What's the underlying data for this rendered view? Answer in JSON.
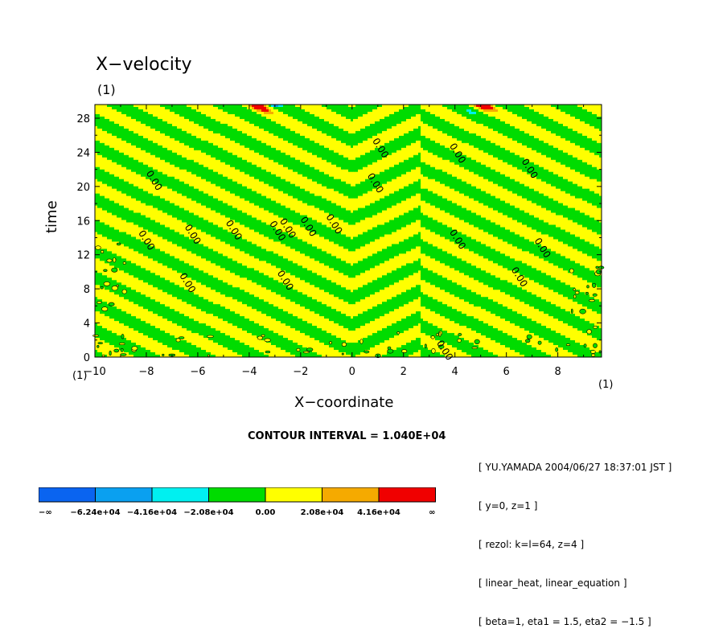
{
  "chart_data": {
    "type": "heatmap",
    "title": "X−velocity",
    "title_unit": "(1)",
    "xlabel": "X−coordinate",
    "ylabel": "time",
    "x_unit": "(1)",
    "x_ticks": [
      "−10",
      "−8",
      "−6",
      "−4",
      "−2",
      "0",
      "2",
      "4",
      "6",
      "8"
    ],
    "x_tick_values": [
      -10,
      -8,
      -6,
      -4,
      -2,
      0,
      2,
      4,
      6,
      8
    ],
    "y_ticks": [
      "0",
      "4",
      "8",
      "12",
      "16",
      "20",
      "24",
      "28"
    ],
    "y_tick_values": [
      0,
      4,
      8,
      12,
      16,
      20,
      24,
      28
    ],
    "xlim": [
      -10,
      9.7
    ],
    "ylim": [
      0,
      29.6
    ],
    "contour_interval": "CONTOUR INTERVAL = 1.040E+04",
    "contour_labels": [
      {
        "x": -7.8,
        "t": 20.5,
        "text": "0.00"
      },
      {
        "x": -8.1,
        "t": 13.5,
        "text": "0.00"
      },
      {
        "x": -6.3,
        "t": 14.2,
        "text": "0.00"
      },
      {
        "x": -6.5,
        "t": 8.5,
        "text": "0.00"
      },
      {
        "x": -4.7,
        "t": 14.7,
        "text": "0.00"
      },
      {
        "x": -3.0,
        "t": 14.6,
        "text": "0.00"
      },
      {
        "x": -2.6,
        "t": 14.9,
        "text": "0.00"
      },
      {
        "x": -1.8,
        "t": 15.1,
        "text": "0.00"
      },
      {
        "x": -0.8,
        "t": 15.4,
        "text": "0.00"
      },
      {
        "x": -2.7,
        "t": 8.8,
        "text": "0.00"
      },
      {
        "x": 1.0,
        "t": 24.3,
        "text": "0.00"
      },
      {
        "x": 0.8,
        "t": 20.2,
        "text": "0.00"
      },
      {
        "x": 3.5,
        "t": 0.6,
        "text": "0.00"
      },
      {
        "x": 4.0,
        "t": 13.6,
        "text": "0.00"
      },
      {
        "x": 4.0,
        "t": 23.7,
        "text": "0.00"
      },
      {
        "x": 6.8,
        "t": 21.9,
        "text": "0.00"
      },
      {
        "x": 6.4,
        "t": 9.2,
        "text": "0.00"
      },
      {
        "x": 7.3,
        "t": 12.6,
        "text": "0.00"
      }
    ],
    "colorbar": {
      "colors": [
        "#0a64f0",
        "#0aa0f0",
        "#00f0f0",
        "#00dc00",
        "#ffff00",
        "#f5aa00",
        "#f00000"
      ],
      "labels": [
        "−∞",
        "−6.24e+04",
        "−4.16e+04",
        "−2.08e+04",
        "0.00",
        "2.08e+04",
        "4.16e+04",
        "∞"
      ]
    }
  },
  "info": [
    "[ YU.YAMADA 2004/06/27 18:37:01 JST ]",
    "[ y=0, z=1 ]",
    "[ rezol: k=l=64, z=4 ]",
    "[ linear_heat, linear_equation ]",
    "[ beta=1, eta1 = 1.5, eta2 = −1.5 ]"
  ]
}
